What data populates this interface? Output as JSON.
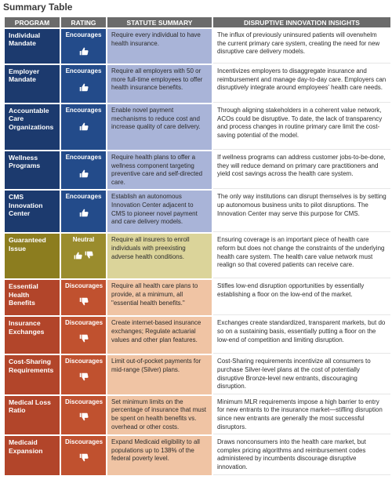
{
  "title": "Summary Table",
  "headers": {
    "program": "PROGRAM",
    "rating": "RATING",
    "statute": "STATUTE SUMMARY",
    "insights": "DISRUPTIVE INNOVATION INSIGHTS"
  },
  "colors": {
    "encourages": "#234b8a",
    "neutral": "#9a8c2d",
    "discourages": "#c0512f"
  },
  "rows": [
    {
      "program": "Individual Mandate",
      "rating": "Encourages",
      "icon": "thumb-up-icon",
      "statute": "Require every individual to have health insurance.",
      "insight": "The influx of previously uninsured patients will overwhelm the current primary care system, creating the need for new disruptive care delivery models."
    },
    {
      "program": "Employer Mandate",
      "rating": "Encourages",
      "icon": "thumb-up-icon",
      "statute": "Require all employers with 50 or more full-time employees to offer health insurance benefits.",
      "insight": "Incentivizes employers to disaggregate insurance and reimbursement and manage day-to-day care. Employers can disruptively integrate around employees' health care needs."
    },
    {
      "program": "Accountable Care Organizations",
      "rating": "Encourages",
      "icon": "thumb-up-icon",
      "statute": "Enable novel payment mechanisms to reduce cost and increase quality of care delivery.",
      "insight": "Through aligning stakeholders in a coherent value network, ACOs could be disruptive. To date, the lack of transparency and process changes in routine primary care limit the cost-saving potential of the model."
    },
    {
      "program": "Wellness Programs",
      "rating": "Encourages",
      "icon": "thumb-up-icon",
      "statute": "Require health plans to offer a wellness component targeting preventive care and self-directed care.",
      "insight": "If wellness programs can address customer jobs-to-be-done, they will reduce demand on primary care practitioners and yield cost savings across the health care system."
    },
    {
      "program": "CMS Innovation Center",
      "rating": "Encourages",
      "icon": "thumb-up-icon",
      "statute": "Establish an autonomous Innovation Center adjacent to CMS to pioneer novel payment and care delivery models.",
      "insight": "The only way institutions can disrupt themselves is by setting up autonomous business units to pilot disruptions. The Innovation Center may serve this purpose for CMS."
    },
    {
      "program": "Guaranteed Issue",
      "rating": "Neutral",
      "icon": "thumbs-up-down-icon",
      "statute": "Require all insurers to enroll individuals with preexisting adverse health conditions.",
      "insight": "Ensuring coverage is an important piece of health care reform but does not change the constraints of the underlying health care system. The health care value network must realign so that covered patients can receive care."
    },
    {
      "program": "Essential Health Benefits",
      "rating": "Discourages",
      "icon": "thumb-down-icon",
      "statute": "Require all health care plans to provide, at a minimum, all \"essential health benefits.\"",
      "insight": "Stifles low-end disruption opportunities by essentially establishing a floor on the low-end of the market."
    },
    {
      "program": "Insurance Exchanges",
      "rating": "Discourages",
      "icon": "thumb-down-icon",
      "statute": "Create internet-based insurance exchanges; Regulate actuarial values and other plan features.",
      "insight": "Exchanges create standardized, transparent markets, but do so on a sustaining basis, essentially putting a floor on the low-end of competition and limiting disruption."
    },
    {
      "program": "Cost-Sharing Requirements",
      "rating": "Discourages",
      "icon": "thumb-down-icon",
      "statute": "Limit out-of-pocket payments for mid-range (Silver) plans.",
      "insight": "Cost-Sharing requirements incentivize all consumers to purchase Silver-level plans at the cost of potentially disruptive Bronze-level new entrants, discouraging disruption."
    },
    {
      "program": "Medical Loss Ratio",
      "rating": "Discourages",
      "icon": "thumb-down-icon",
      "statute": "Set minimum limits on the percentage of insurance that must be spent on health benefits vs. overhead or other costs.",
      "insight": "Minimum MLR requirements impose a high barrier to entry for new entrants to the insurance market—stifling disruption since new entrants are generally the most successful disruptors."
    },
    {
      "program": "Medicaid Expansion",
      "rating": "Discourages",
      "icon": "thumb-down-icon",
      "statute": "Expand Medicaid eligibility to all populations up to 138% of the federal poverty level.",
      "insight": "Draws nonconsumers into the health care market, but complex pricing algorithms and reimbursement codes administered by incumbents discourage disruptive innovation."
    }
  ]
}
